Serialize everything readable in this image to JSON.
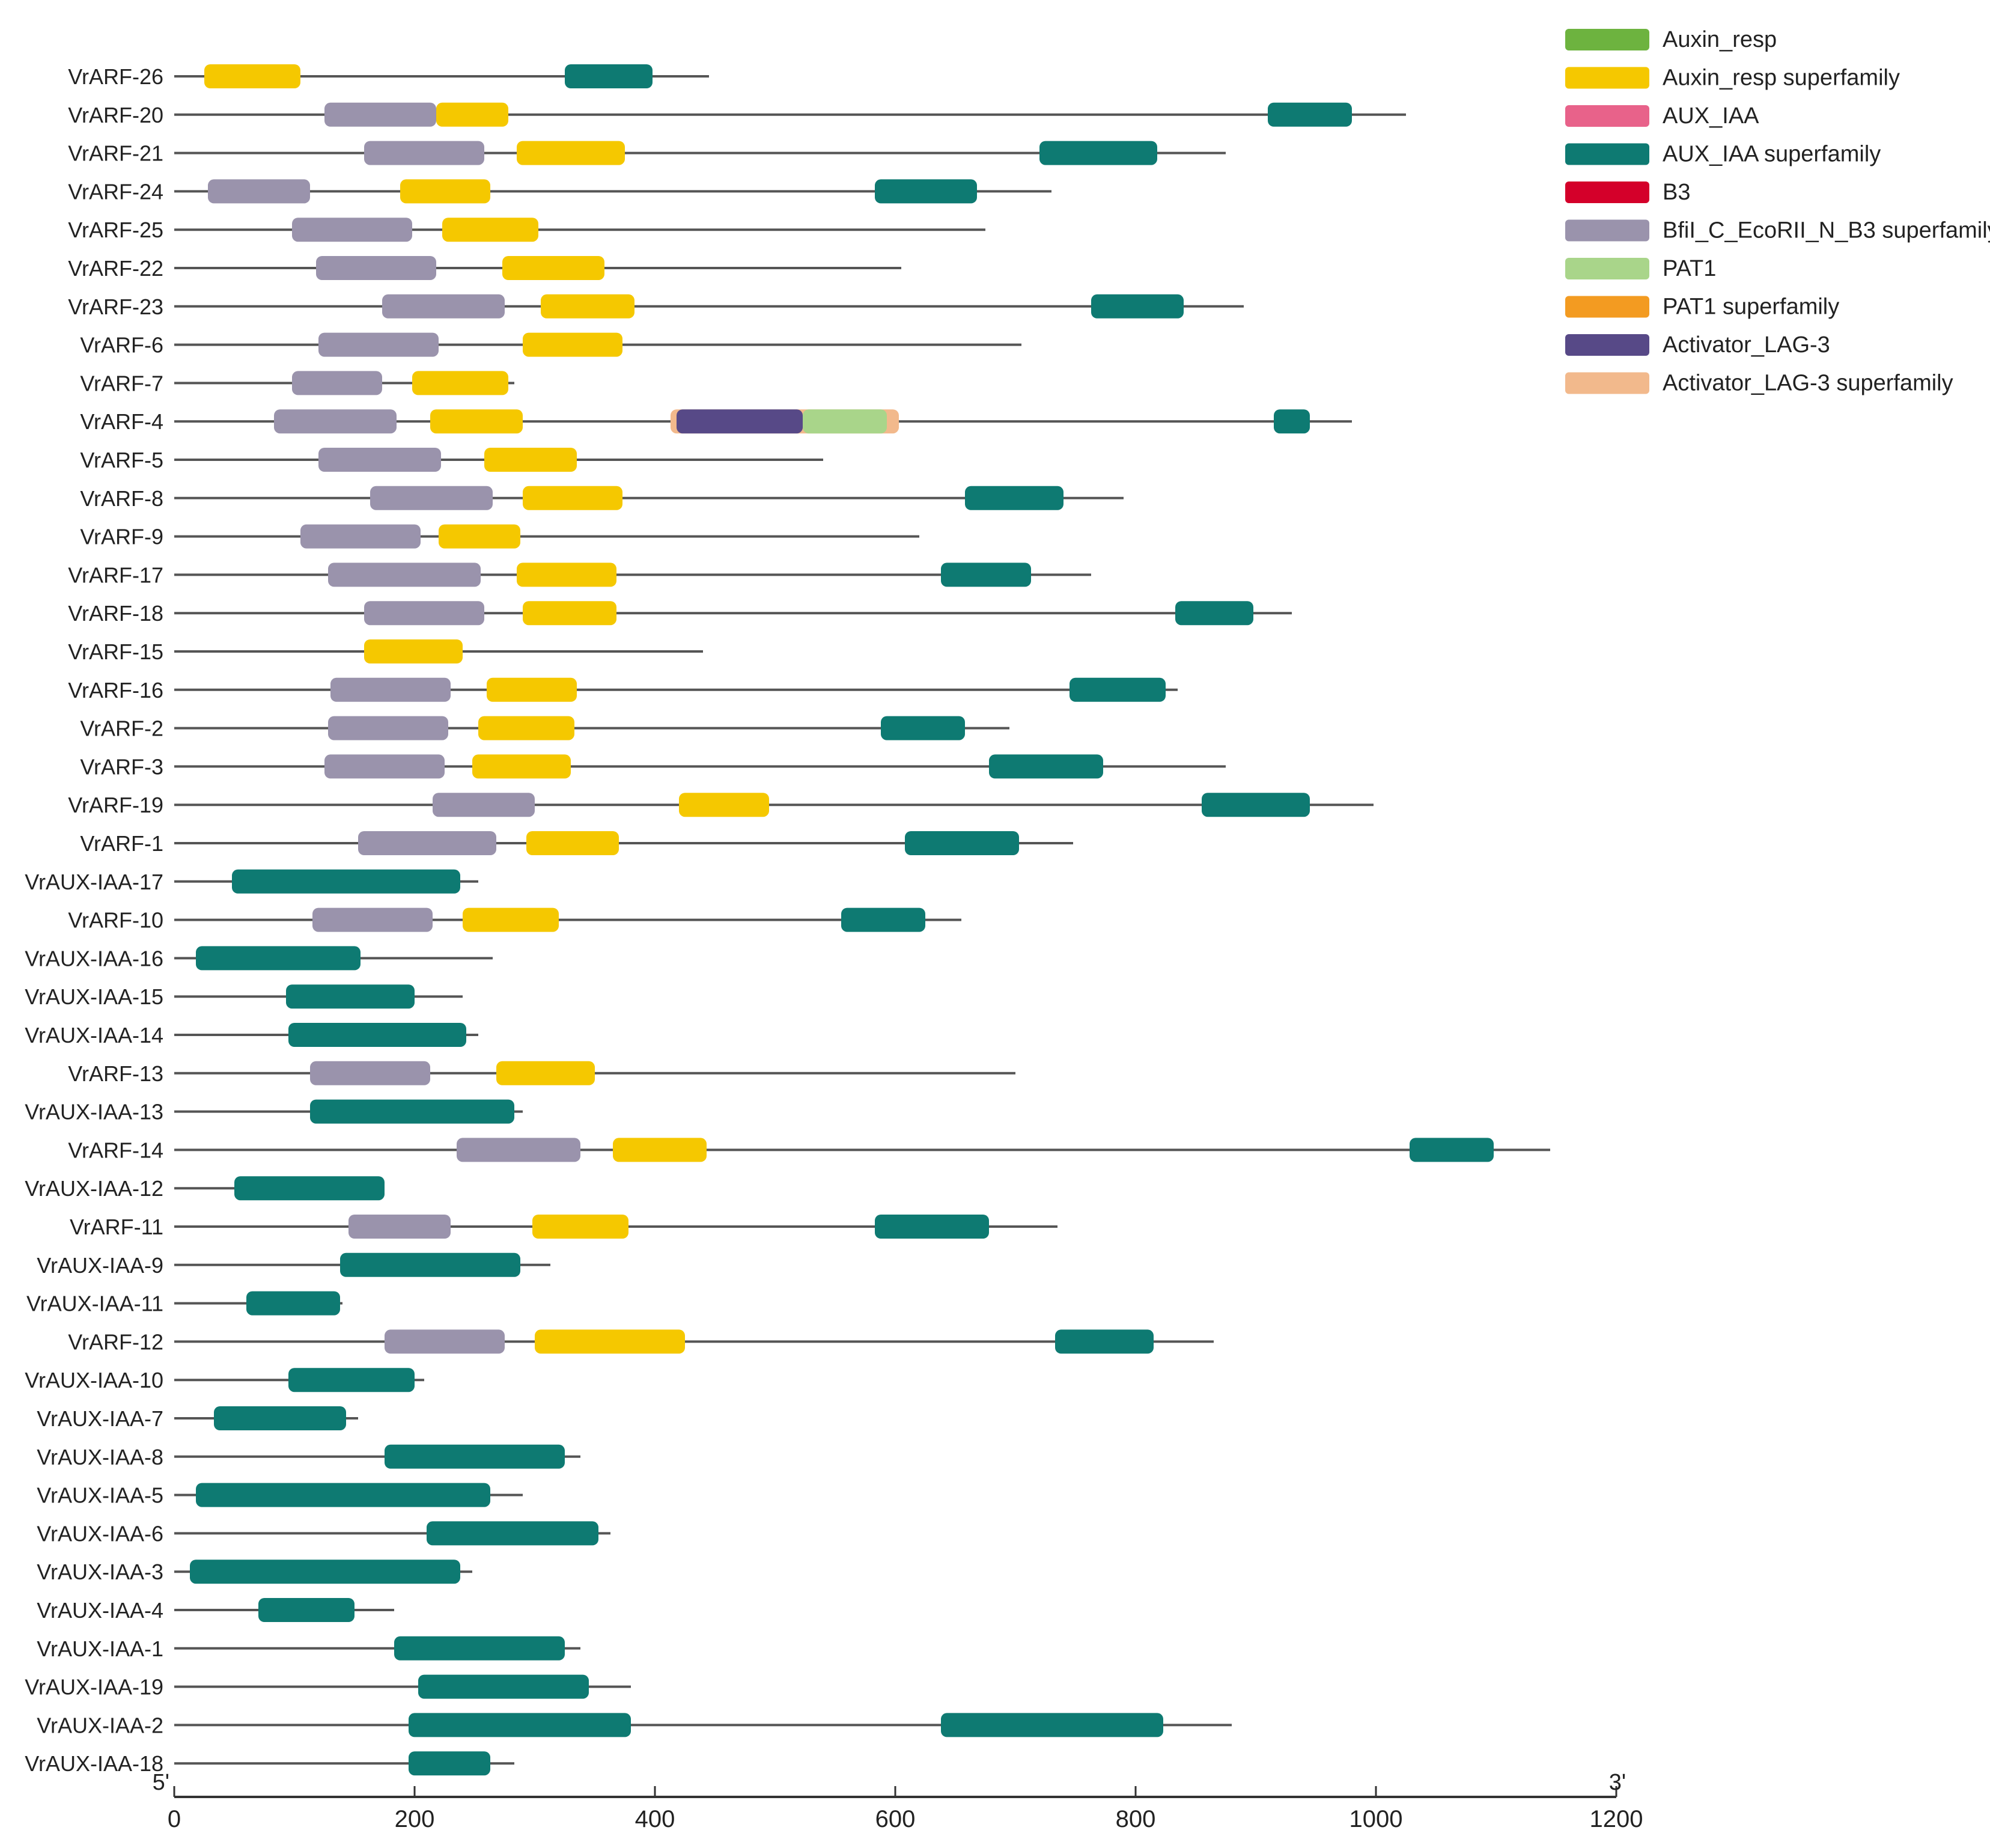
{
  "chart_data": {
    "type": "gene-domain-structure",
    "x_axis": {
      "ticks": [
        0,
        200,
        400,
        600,
        800,
        1000,
        1200
      ],
      "range": [
        0,
        1200
      ],
      "start_label": "5'",
      "end_label": "3'"
    },
    "colors": {
      "backbone": "#555555",
      "axis": "#333333"
    },
    "legend": [
      {
        "key": "Auxin_resp",
        "label": "Auxin_resp",
        "color": "#6DB33F"
      },
      {
        "key": "Auxin_resp_sf",
        "label": "Auxin_resp superfamily",
        "color": "#F5C800"
      },
      {
        "key": "AUX_IAA",
        "label": "AUX_IAA",
        "color": "#E8628A"
      },
      {
        "key": "AUX_IAA_sf",
        "label": "AUX_IAA superfamily",
        "color": "#0E7A72"
      },
      {
        "key": "B3",
        "label": "B3",
        "color": "#D4002A"
      },
      {
        "key": "Bfil_sf",
        "label": "BfiI_C_EcoRII_N_B3 superfamily",
        "color": "#9A93AC"
      },
      {
        "key": "PAT1",
        "label": "PAT1",
        "color": "#A9D58A"
      },
      {
        "key": "PAT1_sf",
        "label": "PAT1 superfamily",
        "color": "#F39B21"
      },
      {
        "key": "Activator_LAG3",
        "label": "Activator_LAG-3",
        "color": "#574987"
      },
      {
        "key": "Activator_LAG3_sf",
        "label": "Activator_LAG-3 superfamily",
        "color": "#F2B98C"
      }
    ],
    "genes": [
      {
        "name": "VrARF-26",
        "length": 445,
        "domains": [
          [
            "Auxin_resp_sf",
            25,
            105
          ],
          [
            "AUX_IAA_sf",
            325,
            398
          ]
        ]
      },
      {
        "name": "VrARF-20",
        "length": 1025,
        "domains": [
          [
            "Bfil_sf",
            125,
            218
          ],
          [
            "Auxin_resp_sf",
            218,
            278
          ],
          [
            "AUX_IAA_sf",
            910,
            980
          ]
        ]
      },
      {
        "name": "VrARF-21",
        "length": 875,
        "domains": [
          [
            "Bfil_sf",
            158,
            258
          ],
          [
            "Auxin_resp_sf",
            285,
            375
          ],
          [
            "AUX_IAA_sf",
            720,
            818
          ]
        ]
      },
      {
        "name": "VrARF-24",
        "length": 730,
        "domains": [
          [
            "Bfil_sf",
            28,
            113
          ],
          [
            "Auxin_resp_sf",
            188,
            263
          ],
          [
            "AUX_IAA_sf",
            583,
            668
          ]
        ]
      },
      {
        "name": "VrARF-25",
        "length": 675,
        "domains": [
          [
            "Bfil_sf",
            98,
            198
          ],
          [
            "Auxin_resp_sf",
            223,
            303
          ]
        ]
      },
      {
        "name": "VrARF-22",
        "length": 605,
        "domains": [
          [
            "Bfil_sf",
            118,
            218
          ],
          [
            "Auxin_resp_sf",
            273,
            358
          ]
        ]
      },
      {
        "name": "VrARF-23",
        "length": 890,
        "domains": [
          [
            "Bfil_sf",
            173,
            275
          ],
          [
            "Auxin_resp_sf",
            305,
            383
          ],
          [
            "AUX_IAA_sf",
            763,
            840
          ]
        ]
      },
      {
        "name": "VrARF-6",
        "length": 705,
        "domains": [
          [
            "Bfil_sf",
            120,
            220
          ],
          [
            "Auxin_resp_sf",
            290,
            373
          ]
        ]
      },
      {
        "name": "VrARF-7",
        "length": 283,
        "domains": [
          [
            "Bfil_sf",
            98,
            173
          ],
          [
            "Auxin_resp_sf",
            198,
            278
          ]
        ]
      },
      {
        "name": "VrARF-4",
        "length": 980,
        "domains": [
          [
            "Bfil_sf",
            83,
            185
          ],
          [
            "Auxin_resp_sf",
            213,
            290
          ],
          [
            "Activator_LAG3_sf",
            413,
            603
          ],
          [
            "Activator_LAG3",
            418,
            523
          ],
          [
            "PAT1",
            523,
            593
          ],
          [
            "AUX_IAA_sf",
            915,
            945
          ]
        ]
      },
      {
        "name": "VrARF-5",
        "length": 540,
        "domains": [
          [
            "Bfil_sf",
            120,
            222
          ],
          [
            "Auxin_resp_sf",
            258,
            335
          ]
        ]
      },
      {
        "name": "VrARF-8",
        "length": 790,
        "domains": [
          [
            "Bfil_sf",
            163,
            265
          ],
          [
            "Auxin_resp_sf",
            290,
            373
          ],
          [
            "AUX_IAA_sf",
            658,
            740
          ]
        ]
      },
      {
        "name": "VrARF-9",
        "length": 620,
        "domains": [
          [
            "Bfil_sf",
            105,
            205
          ],
          [
            "Auxin_resp_sf",
            220,
            288
          ]
        ]
      },
      {
        "name": "VrARF-17",
        "length": 763,
        "domains": [
          [
            "Bfil_sf",
            128,
            255
          ],
          [
            "Auxin_resp_sf",
            285,
            368
          ],
          [
            "AUX_IAA_sf",
            638,
            713
          ]
        ]
      },
      {
        "name": "VrARF-18",
        "length": 930,
        "domains": [
          [
            "Bfil_sf",
            158,
            258
          ],
          [
            "Auxin_resp_sf",
            290,
            368
          ],
          [
            "AUX_IAA_sf",
            833,
            898
          ]
        ]
      },
      {
        "name": "VrARF-15",
        "length": 440,
        "domains": [
          [
            "Auxin_resp_sf",
            158,
            240
          ]
        ]
      },
      {
        "name": "VrARF-16",
        "length": 835,
        "domains": [
          [
            "Bfil_sf",
            130,
            230
          ],
          [
            "Auxin_resp_sf",
            260,
            335
          ],
          [
            "AUX_IAA_sf",
            745,
            825
          ]
        ]
      },
      {
        "name": "VrARF-2",
        "length": 695,
        "domains": [
          [
            "Bfil_sf",
            128,
            228
          ],
          [
            "Auxin_resp_sf",
            253,
            333
          ],
          [
            "AUX_IAA_sf",
            588,
            658
          ]
        ]
      },
      {
        "name": "VrARF-3",
        "length": 875,
        "domains": [
          [
            "Bfil_sf",
            125,
            225
          ],
          [
            "Auxin_resp_sf",
            248,
            330
          ],
          [
            "AUX_IAA_sf",
            678,
            773
          ]
        ]
      },
      {
        "name": "VrARF-19",
        "length": 998,
        "domains": [
          [
            "Bfil_sf",
            215,
            300
          ],
          [
            "Auxin_resp_sf",
            420,
            495
          ],
          [
            "AUX_IAA_sf",
            855,
            945
          ]
        ]
      },
      {
        "name": "VrARF-1",
        "length": 748,
        "domains": [
          [
            "Bfil_sf",
            153,
            268
          ],
          [
            "Auxin_resp_sf",
            293,
            370
          ],
          [
            "AUX_IAA_sf",
            608,
            703
          ]
        ]
      },
      {
        "name": "VrAUX-IAA-17",
        "length": 253,
        "domains": [
          [
            "AUX_IAA_sf",
            48,
            238
          ]
        ]
      },
      {
        "name": "VrARF-10",
        "length": 655,
        "domains": [
          [
            "Bfil_sf",
            115,
            215
          ],
          [
            "Auxin_resp_sf",
            240,
            320
          ],
          [
            "AUX_IAA_sf",
            555,
            625
          ]
        ]
      },
      {
        "name": "VrAUX-IAA-16",
        "length": 265,
        "domains": [
          [
            "AUX_IAA_sf",
            18,
            155
          ]
        ]
      },
      {
        "name": "VrAUX-IAA-15",
        "length": 240,
        "domains": [
          [
            "AUX_IAA_sf",
            93,
            200
          ]
        ]
      },
      {
        "name": "VrAUX-IAA-14",
        "length": 253,
        "domains": [
          [
            "AUX_IAA_sf",
            95,
            243
          ]
        ]
      },
      {
        "name": "VrARF-13",
        "length": 700,
        "domains": [
          [
            "Bfil_sf",
            113,
            213
          ],
          [
            "Auxin_resp_sf",
            268,
            350
          ]
        ]
      },
      {
        "name": "VrAUX-IAA-13",
        "length": 290,
        "domains": [
          [
            "AUX_IAA_sf",
            113,
            283
          ]
        ]
      },
      {
        "name": "VrARF-14",
        "length": 1145,
        "domains": [
          [
            "Bfil_sf",
            235,
            338
          ],
          [
            "Auxin_resp_sf",
            365,
            443
          ],
          [
            "AUX_IAA_sf",
            1028,
            1098
          ]
        ]
      },
      {
        "name": "VrAUX-IAA-12",
        "length": 175,
        "domains": [
          [
            "AUX_IAA_sf",
            50,
            175
          ]
        ]
      },
      {
        "name": "VrARF-11",
        "length": 735,
        "domains": [
          [
            "Bfil_sf",
            145,
            230
          ],
          [
            "Auxin_resp_sf",
            298,
            378
          ],
          [
            "AUX_IAA_sf",
            583,
            678
          ]
        ]
      },
      {
        "name": "VrAUX-IAA-9",
        "length": 313,
        "domains": [
          [
            "AUX_IAA_sf",
            138,
            288
          ]
        ]
      },
      {
        "name": "VrAUX-IAA-11",
        "length": 140,
        "domains": [
          [
            "AUX_IAA_sf",
            60,
            138
          ]
        ]
      },
      {
        "name": "VrARF-12",
        "length": 865,
        "domains": [
          [
            "Bfil_sf",
            175,
            275
          ],
          [
            "Auxin_resp_sf",
            300,
            425
          ],
          [
            "AUX_IAA_sf",
            733,
            815
          ]
        ]
      },
      {
        "name": "VrAUX-IAA-10",
        "length": 208,
        "domains": [
          [
            "AUX_IAA_sf",
            95,
            200
          ]
        ]
      },
      {
        "name": "VrAUX-IAA-7",
        "length": 153,
        "domains": [
          [
            "AUX_IAA_sf",
            33,
            143
          ]
        ]
      },
      {
        "name": "VrAUX-IAA-8",
        "length": 338,
        "domains": [
          [
            "AUX_IAA_sf",
            175,
            325
          ]
        ]
      },
      {
        "name": "VrAUX-IAA-5",
        "length": 290,
        "domains": [
          [
            "AUX_IAA_sf",
            18,
            263
          ]
        ]
      },
      {
        "name": "VrAUX-IAA-6",
        "length": 363,
        "domains": [
          [
            "AUX_IAA_sf",
            210,
            353
          ]
        ]
      },
      {
        "name": "VrAUX-IAA-3",
        "length": 248,
        "domains": [
          [
            "AUX_IAA_sf",
            13,
            238
          ]
        ]
      },
      {
        "name": "VrAUX-IAA-4",
        "length": 183,
        "domains": [
          [
            "AUX_IAA_sf",
            70,
            150
          ]
        ]
      },
      {
        "name": "VrAUX-IAA-1",
        "length": 338,
        "domains": [
          [
            "AUX_IAA_sf",
            183,
            325
          ]
        ]
      },
      {
        "name": "VrAUX-IAA-19",
        "length": 380,
        "domains": [
          [
            "AUX_IAA_sf",
            203,
            345
          ]
        ]
      },
      {
        "name": "VrAUX-IAA-2",
        "length": 880,
        "domains": [
          [
            "AUX_IAA_sf",
            195,
            380
          ],
          [
            "AUX_IAA_sf",
            638,
            823
          ]
        ]
      },
      {
        "name": "VrAUX-IAA-18",
        "length": 283,
        "domains": [
          [
            "AUX_IAA_sf",
            195,
            263
          ]
        ]
      }
    ]
  }
}
